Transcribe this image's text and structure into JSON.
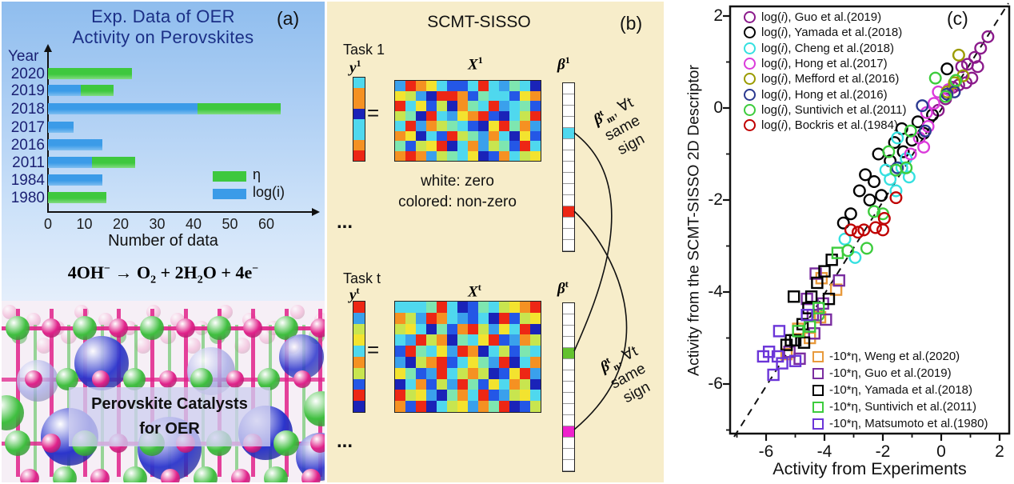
{
  "panels": {
    "a": {
      "label": "(a)",
      "title_line1": "Exp. Data of OER",
      "title_line2": "Activity on Perovskites",
      "y_axis_name": "Year",
      "x_axis_name": "Number of data",
      "legend": [
        {
          "name": "η",
          "color": "#3ec83e"
        },
        {
          "name": "log(i)",
          "color": "#3b9be8"
        }
      ],
      "equation_tokens": [
        {
          "t": "4OH"
        },
        {
          "t": "−",
          "sup": true
        },
        {
          "t": " →  O"
        },
        {
          "t": "2",
          "sub": true
        },
        {
          "t": " + 2H"
        },
        {
          "t": "2",
          "sub": true
        },
        {
          "t": "O + 4e"
        },
        {
          "t": "−",
          "sup": true
        }
      ],
      "structure_caption_line1": "Perovskite Catalysts",
      "structure_caption_line2": "for OER"
    },
    "b": {
      "label": "(b)",
      "title": "SCMT-SISSO",
      "task1_label": "Task 1",
      "taskt_label": "Task t",
      "equals": "=",
      "y1": {
        "base": "y",
        "sup": "1"
      },
      "X1": {
        "base": "X",
        "sup": "1"
      },
      "b1": {
        "base": "β",
        "sup": "1"
      },
      "yt": {
        "base": "y",
        "sup": "t"
      },
      "Xt": {
        "base": "X",
        "sup": "t"
      },
      "bt": {
        "base": "β",
        "sup": "t"
      },
      "white_zero": "white: zero",
      "colored_nonzero": "colored: non-zero",
      "ellipsis": "...",
      "beta_m_label": {
        "beta": "β",
        "sup": "t",
        "sub": "m",
        "rest": ", ∀t",
        "line2": "same",
        "line3": "sign"
      },
      "beta_n_label": {
        "beta": "β",
        "sup": "t",
        "sub": "n",
        "rest": ", ∀t",
        "line2": "same",
        "line3": "sign"
      },
      "palette": {
        "r": "#ed2715",
        "o": "#f59122",
        "y": "#f3e32f",
        "l": "#c8e54f",
        "t": "#7ee6b0",
        "c": "#4fd8ee",
        "s": "#3aa0ec",
        "b": "#2457e6",
        "d": "#1a23b8",
        "w": "#ffffff",
        "g": "#63c22e",
        "m": "#ee22cc"
      },
      "y1_cells": "coodccor",
      "X1_rows": [
        "sroycbbcrcstcd",
        "ylsdrrobtccbyo",
        "rcybldotcrsctb",
        "ltdrcsyorbdclr",
        "crsoltcbdyrtos",
        "oydcbrltsocdyb",
        "tblyrdcosltbrc",
        "orosltcydbocly"
      ],
      "beta1_cells": "wwwwcwwwwwwrwww",
      "yt_cells": "rslycolbrd",
      "Xt_rows": [
        "ccctrcdbtclyor",
        "olsrocsbcdrbly",
        "lycdtborlsycrd",
        "csrlodtcyrbsol",
        "brtcysrodclbtc",
        "sdlorbcytsrdco",
        "ytbsrcloldbyrs",
        "dcoblsrtbycold",
        "rlysdtocrbslyc",
        "obrdclysotrdbl"
      ],
      "betat_cells": "wwwwgwwwwwwmwww"
    },
    "c": {
      "label": "(c)",
      "circle_prefix": {
        "pre": "log(",
        "i": "i",
        "post": "), "
      },
      "square_prefix": "-10*η, "
    }
  },
  "chart_data": [
    {
      "type": "bar",
      "orientation": "horizontal",
      "stacked": true,
      "title": "Exp. Data of OER Activity on Perovskites",
      "categories": [
        "2020",
        "2019",
        "2018",
        "2017",
        "2016",
        "2011",
        "1984",
        "1980"
      ],
      "series": [
        {
          "name": "log(i)",
          "color": "#3b9be8",
          "values": [
            0,
            9,
            41,
            7,
            15,
            12,
            15,
            0
          ]
        },
        {
          "name": "η",
          "color": "#3ec83e",
          "values": [
            23,
            9,
            23,
            0,
            0,
            12,
            0,
            16
          ]
        }
      ],
      "xlabel": "Number of data",
      "ylabel": "Year",
      "xticks": [
        0,
        10,
        20,
        30,
        40,
        50,
        60
      ],
      "xlim": [
        0,
        66
      ]
    },
    {
      "type": "scatter",
      "xlabel": "Activity from Experiments",
      "ylabel": "Activity from the SCMT-SISSO 2D Descriptor",
      "xlim": [
        -7.2,
        2.3
      ],
      "ylim": [
        -7.1,
        2.2
      ],
      "xticks": [
        -6,
        -4,
        -2,
        0,
        2
      ],
      "yticks": [
        2,
        0,
        -2,
        -4,
        -6
      ],
      "minor_xticks": [
        -7,
        -5,
        -3,
        -1,
        1
      ],
      "minor_yticks": [
        1,
        -1,
        -3,
        -5,
        -7
      ],
      "diagonal": "y = x (dashed)",
      "series": [
        {
          "group": "log(i)",
          "marker": "circle",
          "name": "Guo et al.(2019)",
          "color": "#8b1a8b",
          "points": [
            [
              1.6,
              1.55
            ],
            [
              1.35,
              1.3
            ],
            [
              1.15,
              1.1
            ],
            [
              0.9,
              0.95
            ],
            [
              1.25,
              0.9
            ],
            [
              1.05,
              0.65
            ],
            [
              0.7,
              0.9
            ],
            [
              0.85,
              0.55
            ],
            [
              0.6,
              0.5
            ],
            [
              0.4,
              0.45
            ],
            [
              0.15,
              0.2
            ],
            [
              -0.1,
              -0.05
            ]
          ]
        },
        {
          "group": "log(i)",
          "marker": "circle",
          "name": "Yamada et al.(2018)",
          "color": "#000000",
          "points": [
            [
              0.2,
              0.85
            ],
            [
              -0.3,
              -0.15
            ],
            [
              -0.6,
              -0.55
            ],
            [
              -0.8,
              -0.3
            ],
            [
              -1.0,
              -0.7
            ],
            [
              -1.35,
              -0.45
            ],
            [
              -1.6,
              -0.75
            ],
            [
              -1.3,
              -0.95
            ],
            [
              -2.15,
              -1.0
            ],
            [
              -1.75,
              -1.15
            ],
            [
              -2.6,
              -1.45
            ],
            [
              -2.3,
              -1.6
            ],
            [
              -2.8,
              -1.8
            ],
            [
              -2.45,
              -2.0
            ],
            [
              -2.05,
              -1.9
            ],
            [
              -3.1,
              -2.3
            ],
            [
              -3.35,
              -2.5
            ]
          ]
        },
        {
          "group": "log(i)",
          "marker": "circle",
          "name": "Cheng et al.(2018)",
          "color": "#35e0e0",
          "points": [
            [
              -1.5,
              -0.65
            ],
            [
              -1.2,
              -1.1
            ],
            [
              -1.35,
              -1.3
            ],
            [
              -1.1,
              -1.5
            ],
            [
              -1.75,
              -1.55
            ],
            [
              -1.55,
              -1.8
            ],
            [
              -1.9,
              -1.35
            ],
            [
              -3.3,
              -2.85
            ],
            [
              -2.95,
              -3.25
            ]
          ]
        },
        {
          "group": "log(i)",
          "marker": "circle",
          "name": "Hong et al.(2017)",
          "color": "#db3bdb",
          "points": [
            [
              0.25,
              0.4
            ],
            [
              -0.1,
              0.35
            ],
            [
              -0.25,
              0.1
            ],
            [
              -0.5,
              -0.1
            ],
            [
              -0.45,
              -0.4
            ],
            [
              -0.75,
              -0.65
            ],
            [
              -0.6,
              -0.85
            ],
            [
              -1.05,
              -1.0
            ]
          ]
        },
        {
          "group": "log(i)",
          "marker": "circle",
          "name": "Mefford et al.(2016)",
          "color": "#9b9b00",
          "points": [
            [
              0.75,
              0.7
            ],
            [
              0.45,
              0.55
            ],
            [
              0.6,
              1.15
            ],
            [
              0.2,
              0.35
            ]
          ]
        },
        {
          "group": "log(i)",
          "marker": "circle",
          "name": "Hong et al.(2016)",
          "color": "#2b3990",
          "points": [
            [
              0.45,
              0.35
            ],
            [
              0.2,
              0.3
            ],
            [
              -0.55,
              -0.5
            ],
            [
              -0.65,
              0.05
            ],
            [
              -1.5,
              -1.3
            ]
          ]
        },
        {
          "group": "log(i)",
          "marker": "circle",
          "name": "Suntivich et al.(2011)",
          "color": "#3dcc3d",
          "points": [
            [
              0.5,
              0.6
            ],
            [
              0.15,
              0.25
            ],
            [
              -0.2,
              0.65
            ],
            [
              -1.05,
              -0.5
            ],
            [
              -1.8,
              -0.95
            ],
            [
              -1.55,
              -1.35
            ],
            [
              -1.2,
              -1.3
            ],
            [
              -2.0,
              -2.3
            ],
            [
              -2.3,
              -2.25
            ],
            [
              -2.55,
              -3.05
            ],
            [
              -3.2,
              -3.1
            ],
            [
              -4.2,
              -4.5
            ]
          ]
        },
        {
          "group": "log(i)",
          "marker": "circle",
          "name": "Bockris et al.(1984)",
          "color": "#c00000",
          "points": [
            [
              -1.55,
              -1.95
            ],
            [
              -1.95,
              -2.4
            ],
            [
              -2.0,
              -2.65
            ],
            [
              -2.25,
              -2.6
            ],
            [
              -2.65,
              -2.65
            ],
            [
              -2.85,
              -2.7
            ],
            [
              -3.1,
              -2.65
            ]
          ]
        },
        {
          "group": "-10*η",
          "marker": "square",
          "name": "Weng et al.(2020)",
          "color": "#e89a3c",
          "points": [
            [
              -4.1,
              -3.7
            ],
            [
              -3.6,
              -3.95
            ],
            [
              -4.5,
              -5.0
            ],
            [
              -4.9,
              -4.8
            ],
            [
              -5.3,
              -5.35
            ],
            [
              -4.15,
              -4.55
            ]
          ]
        },
        {
          "group": "-10*η",
          "marker": "square",
          "name": "Guo et al.(2019)",
          "color": "#7a2da0",
          "points": [
            [
              -3.5,
              -3.75
            ],
            [
              -4.3,
              -3.6
            ],
            [
              -4.6,
              -4.15
            ],
            [
              -4.4,
              -4.5
            ],
            [
              -3.95,
              -4.6
            ],
            [
              -4.35,
              -4.9
            ],
            [
              -5.2,
              -5.3
            ],
            [
              -4.85,
              -5.45
            ],
            [
              -4.05,
              -4.25
            ]
          ]
        },
        {
          "group": "-10*η",
          "marker": "square",
          "name": "Yamada et al.(2018)",
          "color": "#000000",
          "points": [
            [
              -5.05,
              -4.1
            ],
            [
              -3.75,
              -3.3
            ],
            [
              -4.0,
              -3.55
            ],
            [
              -4.25,
              -3.8
            ],
            [
              -4.55,
              -4.35
            ],
            [
              -4.75,
              -4.7
            ],
            [
              -5.0,
              -5.05
            ],
            [
              -5.3,
              -5.15
            ],
            [
              -5.15,
              -5.05
            ],
            [
              -4.7,
              -5.1
            ],
            [
              -4.45,
              -4.1
            ],
            [
              -3.85,
              -4.15
            ]
          ]
        },
        {
          "group": "-10*η",
          "marker": "square",
          "name": "Suntivich et al.(2011)",
          "color": "#3dcc3d",
          "points": [
            [
              -3.55,
              -3.15
            ],
            [
              -4.2,
              -4.35
            ],
            [
              -4.9,
              -4.85
            ],
            [
              -4.5,
              -4.75
            ]
          ]
        },
        {
          "group": "-10*η",
          "marker": "square",
          "name": "Matsumoto et al.(1980)",
          "color": "#6b35d8",
          "points": [
            [
              -5.55,
              -4.85
            ],
            [
              -5.9,
              -5.3
            ],
            [
              -5.6,
              -5.4
            ],
            [
              -6.1,
              -5.4
            ],
            [
              -5.75,
              -5.8
            ],
            [
              -5.45,
              -5.55
            ],
            [
              -4.6,
              -4.5
            ],
            [
              -5.0,
              -5.5
            ]
          ]
        }
      ]
    }
  ]
}
